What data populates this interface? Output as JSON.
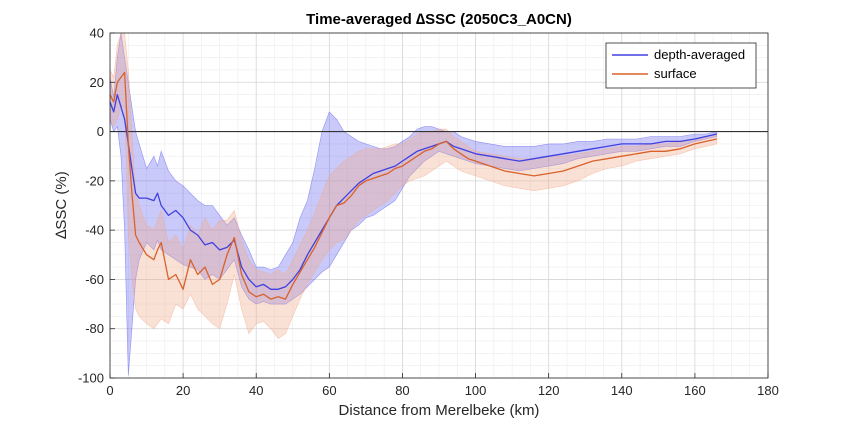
{
  "chart_data": {
    "type": "line",
    "title": "Time-averaged ∆SSC (2050C3_A0CN)",
    "xlabel": "Distance from Merelbeke (km)",
    "ylabel": "∆SSC (%)",
    "xlim": [
      0,
      180
    ],
    "ylim": [
      -100,
      40
    ],
    "x_ticks": [
      "0",
      "20",
      "40",
      "60",
      "80",
      "100",
      "120",
      "140",
      "160",
      "180"
    ],
    "y_ticks": [
      "40",
      "20",
      "0",
      "-20",
      "-40",
      "-60",
      "-80",
      "-100"
    ],
    "grid": true,
    "minor_grid": true,
    "reference_line_y": 0,
    "legend_position": "top-right",
    "series": [
      {
        "name": "depth-averaged",
        "color": "#4040e0",
        "band_color": "#5a5af0",
        "x": [
          0,
          1,
          2,
          3,
          4,
          5,
          6,
          7,
          8,
          10,
          12,
          13,
          14,
          16,
          18,
          20,
          22,
          24,
          26,
          28,
          30,
          32,
          34,
          36,
          38,
          40,
          42,
          44,
          46,
          48,
          50,
          52,
          54,
          56,
          58,
          60,
          62,
          64,
          66,
          68,
          70,
          72,
          74,
          76,
          78,
          80,
          82,
          84,
          86,
          88,
          90,
          92,
          94,
          96,
          98,
          100,
          104,
          108,
          112,
          116,
          120,
          124,
          128,
          132,
          136,
          140,
          144,
          148,
          152,
          156,
          160,
          163,
          166
        ],
        "y": [
          12,
          8,
          15,
          10,
          5,
          -5,
          -15,
          -25,
          -27,
          -27,
          -28,
          -25,
          -30,
          -34,
          -32,
          -35,
          -40,
          -42,
          -46,
          -45,
          -48,
          -47,
          -44,
          -55,
          -60,
          -63,
          -62,
          -64,
          -64,
          -63,
          -60,
          -56,
          -50,
          -45,
          -40,
          -35,
          -30,
          -27,
          -24,
          -21,
          -19,
          -17,
          -16,
          -15,
          -14,
          -12,
          -10,
          -8,
          -7,
          -6,
          -5,
          -4,
          -6,
          -7,
          -8,
          -9,
          -10,
          -11,
          -12,
          -11,
          -10,
          -9,
          -8,
          -7,
          -6,
          -5,
          -5,
          -5,
          -4,
          -4,
          -3,
          -2,
          -1
        ],
        "upper": [
          22,
          14,
          30,
          40,
          30,
          20,
          10,
          0,
          -5,
          -15,
          -10,
          -14,
          -8,
          -16,
          -20,
          -22,
          -25,
          -28,
          -30,
          -30,
          -34,
          -38,
          -35,
          -42,
          -48,
          -55,
          -55,
          -56,
          -55,
          -50,
          -45,
          -35,
          -28,
          -15,
          0,
          8,
          5,
          0,
          -2,
          -4,
          -5,
          -6,
          -7,
          -7,
          -6,
          -4,
          -2,
          1,
          2,
          2,
          1,
          0,
          0,
          -2,
          -3,
          -4,
          -5,
          -6,
          -6,
          -6,
          -5,
          -5,
          -4,
          -4,
          -3,
          -3,
          -3,
          -2,
          -2,
          -2,
          -1,
          -1,
          0
        ],
        "lower": [
          5,
          0,
          2,
          -10,
          -40,
          -99,
          -80,
          -60,
          -52,
          -45,
          -48,
          -44,
          -48,
          -50,
          -52,
          -54,
          -55,
          -56,
          -60,
          -58,
          -60,
          -56,
          -52,
          -63,
          -68,
          -70,
          -69,
          -70,
          -70,
          -70,
          -68,
          -66,
          -63,
          -60,
          -57,
          -55,
          -50,
          -45,
          -40,
          -38,
          -35,
          -34,
          -32,
          -30,
          -28,
          -23,
          -18,
          -15,
          -12,
          -10,
          -8,
          -9,
          -10,
          -11,
          -12,
          -13,
          -14,
          -15,
          -16,
          -15,
          -14,
          -13,
          -11,
          -10,
          -9,
          -8,
          -8,
          -7,
          -6,
          -6,
          -4,
          -3,
          -2
        ]
      },
      {
        "name": "surface",
        "color": "#d9622b",
        "band_color": "#f2a88a",
        "x": [
          0,
          1,
          2,
          3,
          4,
          5,
          6,
          7,
          8,
          10,
          12,
          13,
          14,
          16,
          18,
          20,
          22,
          24,
          26,
          28,
          30,
          32,
          34,
          36,
          38,
          40,
          42,
          44,
          46,
          48,
          50,
          52,
          54,
          56,
          58,
          60,
          62,
          64,
          66,
          68,
          70,
          72,
          74,
          76,
          78,
          80,
          82,
          84,
          86,
          88,
          90,
          92,
          94,
          96,
          98,
          100,
          104,
          108,
          112,
          116,
          120,
          124,
          128,
          132,
          136,
          140,
          144,
          148,
          152,
          156,
          160,
          163,
          166
        ],
        "y": [
          15,
          12,
          20,
          22,
          24,
          -5,
          -25,
          -42,
          -45,
          -50,
          -52,
          -48,
          -45,
          -60,
          -58,
          -64,
          -52,
          -58,
          -55,
          -62,
          -60,
          -50,
          -43,
          -58,
          -65,
          -67,
          -66,
          -68,
          -67,
          -68,
          -62,
          -57,
          -52,
          -47,
          -41,
          -35,
          -30,
          -29,
          -26,
          -22,
          -20,
          -19,
          -18,
          -17,
          -15,
          -14,
          -12,
          -10,
          -8,
          -7,
          -5,
          -4,
          -7,
          -9,
          -11,
          -12,
          -14,
          -16,
          -17,
          -18,
          -17,
          -16,
          -14,
          -12,
          -11,
          -10,
          -9,
          -8,
          -8,
          -7,
          -5,
          -4,
          -3
        ],
        "upper": [
          25,
          22,
          35,
          40,
          40,
          25,
          0,
          -25,
          -30,
          -38,
          -40,
          -36,
          -32,
          -45,
          -42,
          -48,
          -38,
          -42,
          -35,
          -40,
          -36,
          -36,
          -32,
          -44,
          -52,
          -56,
          -57,
          -58,
          -56,
          -58,
          -52,
          -46,
          -40,
          -33,
          -25,
          -18,
          -15,
          -12,
          -10,
          -8,
          -7,
          -7,
          -7,
          -6,
          -5,
          -5,
          -3,
          -1,
          0,
          0,
          1,
          1,
          -2,
          -4,
          -6,
          -8,
          -9,
          -10,
          -11,
          -11,
          -10,
          -10,
          -9,
          -8,
          -7,
          -6,
          -6,
          -5,
          -5,
          -4,
          -3,
          -2,
          -1
        ],
        "lower": [
          5,
          2,
          5,
          10,
          10,
          -40,
          -60,
          -72,
          -75,
          -78,
          -80,
          -78,
          -76,
          -78,
          -70,
          -72,
          -66,
          -72,
          -75,
          -78,
          -80,
          -70,
          -58,
          -72,
          -82,
          -78,
          -77,
          -80,
          -84,
          -82,
          -75,
          -68,
          -62,
          -57,
          -52,
          -48,
          -45,
          -44,
          -40,
          -36,
          -34,
          -32,
          -30,
          -28,
          -25,
          -22,
          -20,
          -19,
          -18,
          -16,
          -14,
          -12,
          -14,
          -16,
          -17,
          -18,
          -20,
          -22,
          -23,
          -24,
          -23,
          -22,
          -20,
          -17,
          -15,
          -14,
          -12,
          -11,
          -10,
          -9,
          -7,
          -6,
          -5
        ]
      }
    ]
  }
}
